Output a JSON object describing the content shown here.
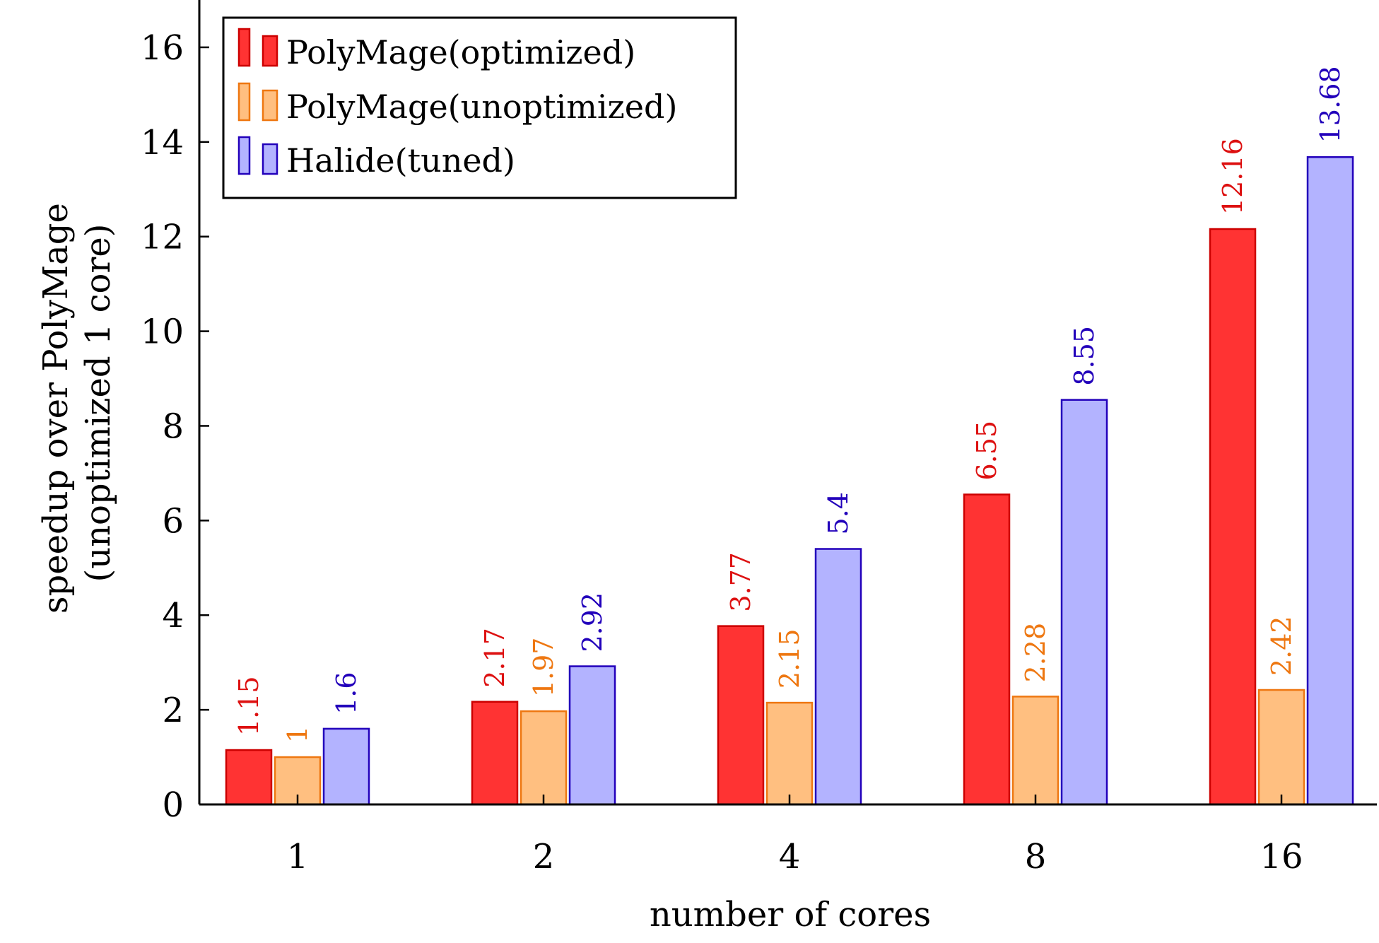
{
  "chart_data": {
    "type": "bar",
    "xlabel": "number of cores",
    "ylabel_lines": [
      "speedup over PolyMage",
      "(unoptimized 1 core)"
    ],
    "categories": [
      "1",
      "2",
      "4",
      "8",
      "16"
    ],
    "ylim": [
      0,
      17
    ],
    "yticks": [
      0,
      2,
      4,
      6,
      8,
      10,
      12,
      14,
      16
    ],
    "grid": false,
    "legend_position": "top-left",
    "series": [
      {
        "name": "PolyMage(optimized)",
        "values": [
          1.15,
          2.17,
          3.77,
          6.55,
          12.16
        ],
        "labels": [
          "1.15",
          "2.17",
          "3.77",
          "6.55",
          "12.16"
        ],
        "fill": "#ff3333",
        "stroke": "#cc0000",
        "label_color": "#dd1111"
      },
      {
        "name": "PolyMage(unoptimized)",
        "values": [
          1,
          1.97,
          2.15,
          2.28,
          2.42
        ],
        "labels": [
          "1",
          "1.97",
          "2.15",
          "2.28",
          "2.42"
        ],
        "fill": "#ffbf80",
        "stroke": "#ee7711",
        "label_color": "#ee7711"
      },
      {
        "name": "Halide(tuned)",
        "values": [
          1.6,
          2.92,
          5.4,
          8.55,
          13.68
        ],
        "labels": [
          "1.6",
          "2.92",
          "5.4",
          "8.55",
          "13.68"
        ],
        "fill": "#b3b3ff",
        "stroke": "#2200bb",
        "label_color": "#2200bb"
      }
    ]
  }
}
